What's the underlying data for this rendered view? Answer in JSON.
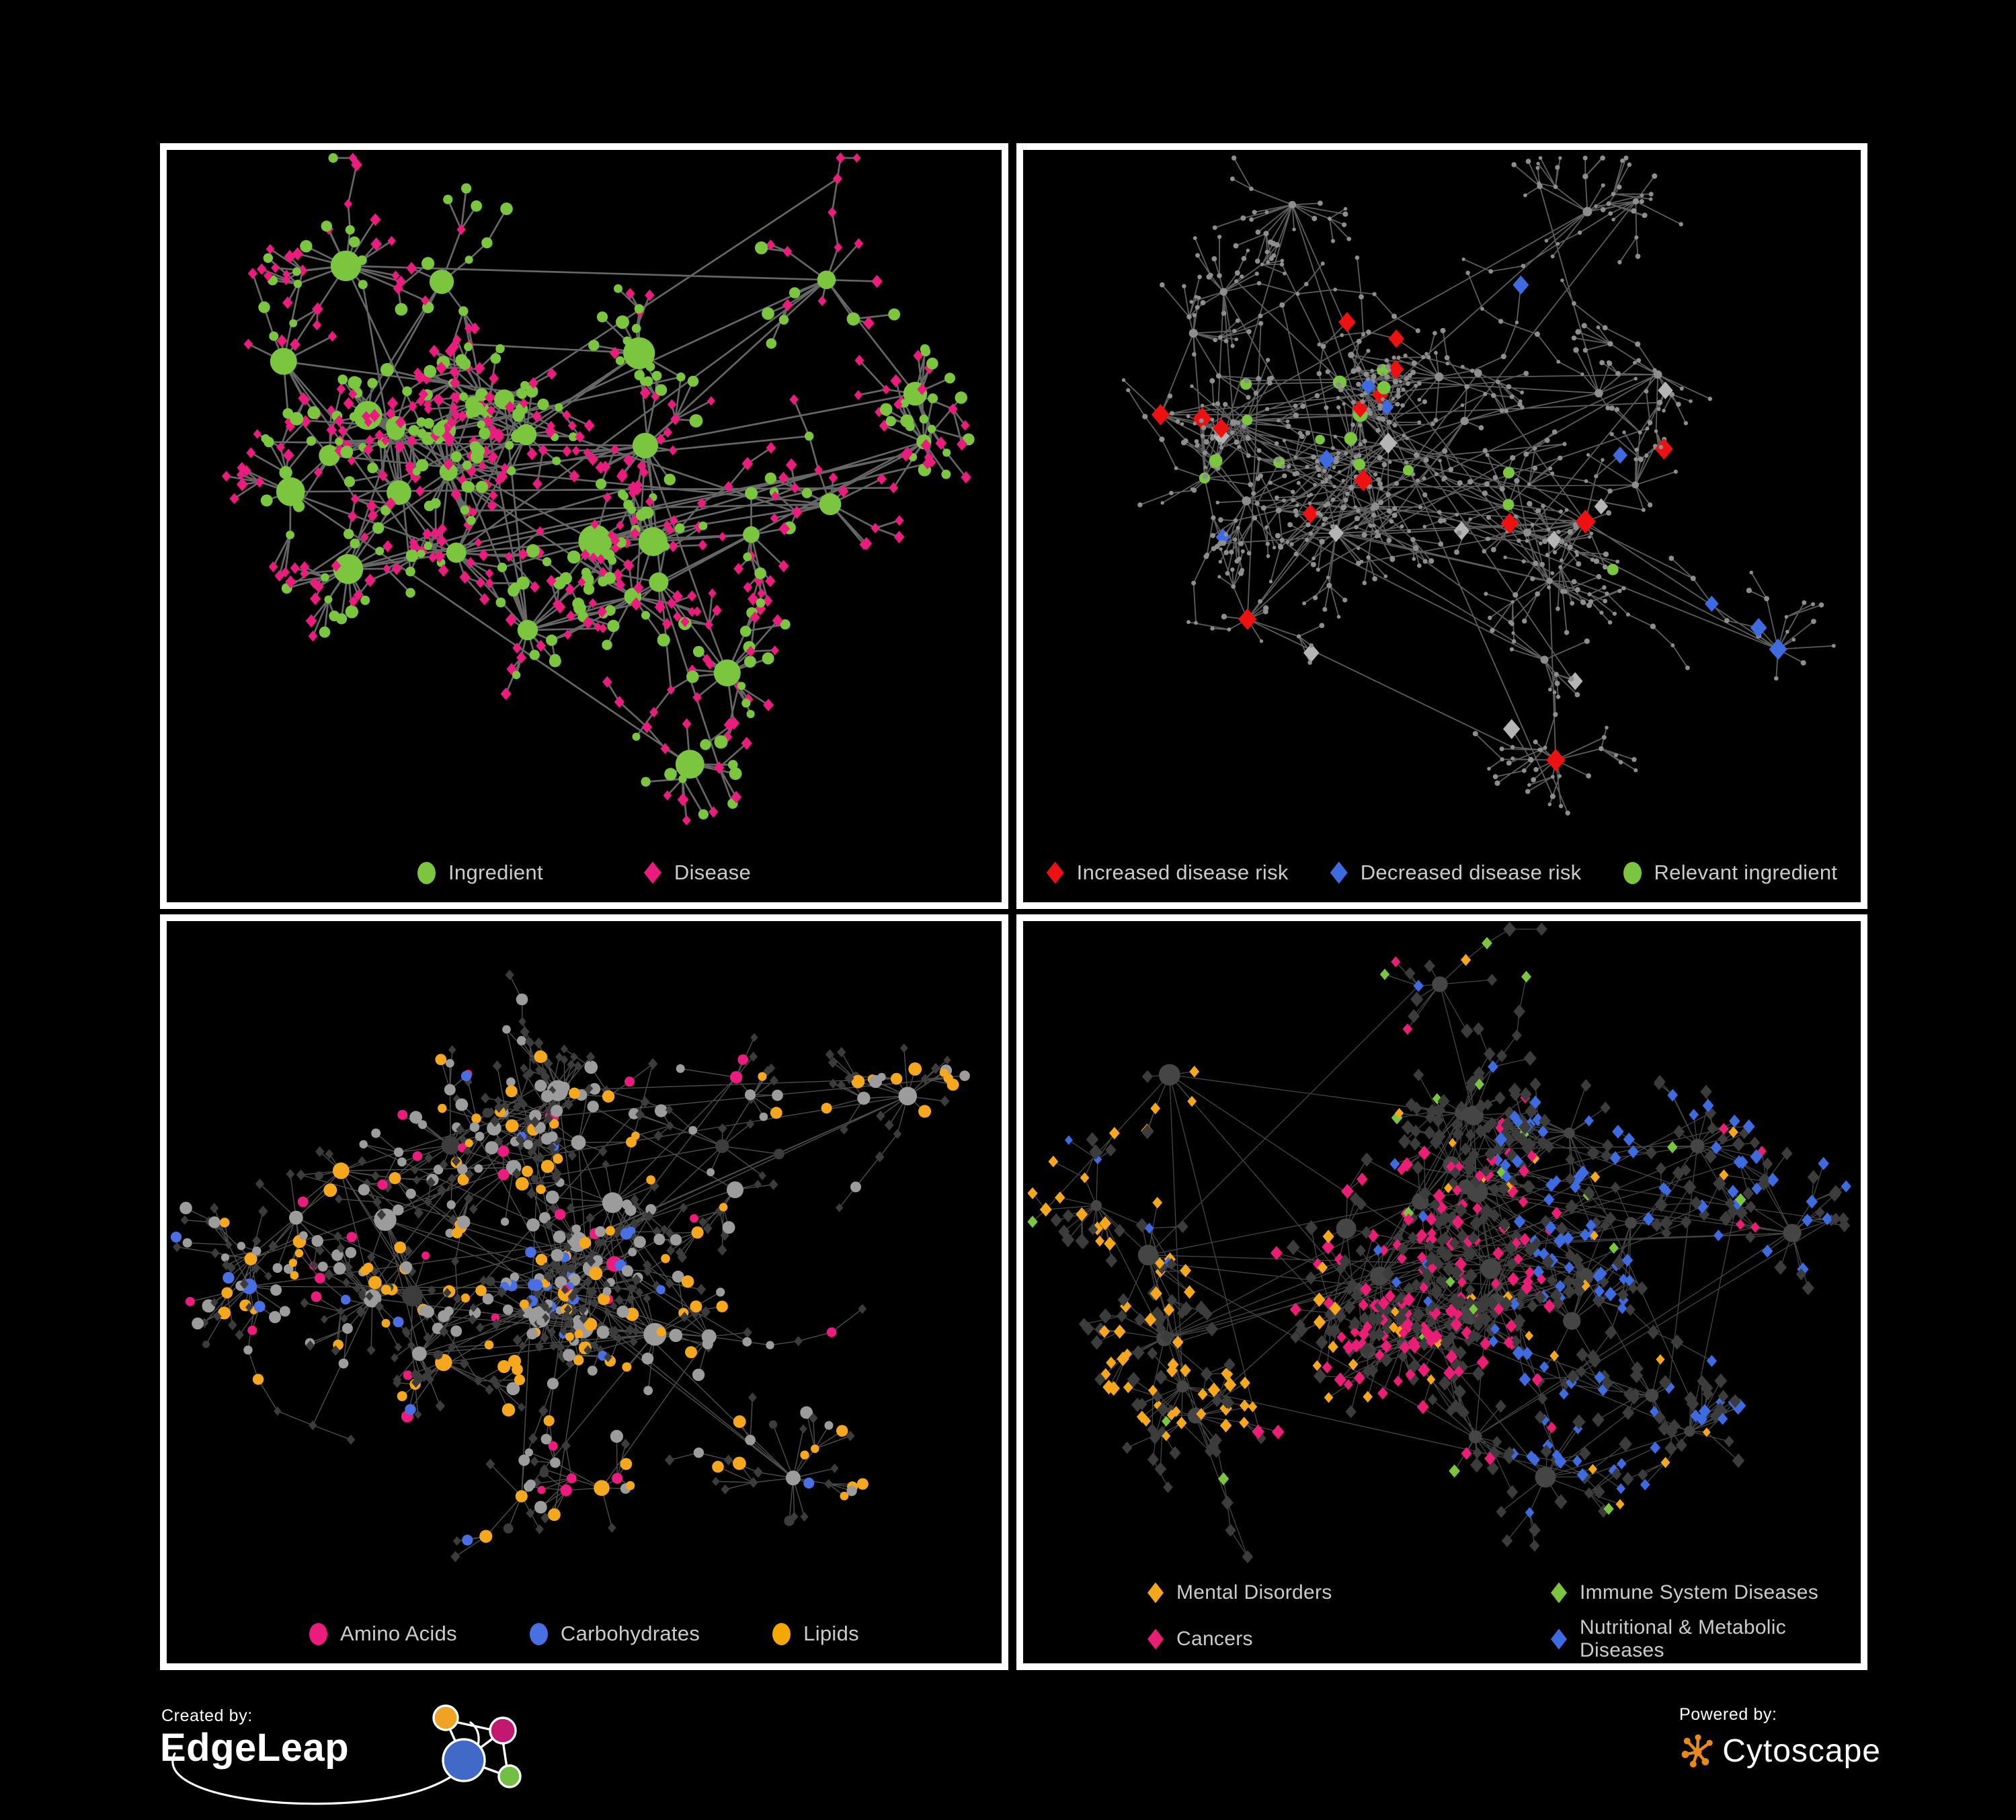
{
  "figure": {
    "background": "#000000",
    "panel_border_color": "#ffffff",
    "legend_text_color": "#cbcbcb"
  },
  "panels": [
    {
      "name": "ingredient-disease-network",
      "legend": [
        {
          "label": "Ingredient",
          "color": "#7cc63f",
          "shape": "circle"
        },
        {
          "label": "Disease",
          "color": "#ea1c7d",
          "shape": "diamond"
        }
      ],
      "network": {
        "seed": 11,
        "hubs": 30,
        "min_kids": 4,
        "var_kids": 12,
        "sub_prob": 0.32,
        "chain_prob": 0.5,
        "extra_edges": 42,
        "view": [
          1242,
          1031
        ],
        "edge": {
          "color": "#6f6f6f",
          "width": 2.7,
          "opacity": 0.92
        },
        "hub_styles": [
          {
            "shape": "circle",
            "color": "#7cc63f",
            "w": 1,
            "r": [
              11,
              14
            ]
          }
        ],
        "leaf_styles": [
          {
            "shape": "diamond",
            "color": "#ea1c7d",
            "w": 0.6,
            "r": [
              7,
              3
            ]
          },
          {
            "shape": "circle",
            "color": "#7cc63f",
            "w": 0.4,
            "r": [
              6,
              4
            ]
          }
        ]
      }
    },
    {
      "name": "disease-risk-network",
      "legend": [
        {
          "label": "Increased disease risk",
          "color": "#ee1111",
          "shape": "diamond"
        },
        {
          "label": "Decreased disease risk",
          "color": "#3e6be0",
          "shape": "diamond"
        },
        {
          "label": "Relevant ingredient",
          "color": "#7cc63f",
          "shape": "circle"
        }
      ],
      "network": {
        "seed": 23,
        "hubs": 34,
        "min_kids": 3,
        "var_kids": 11,
        "sub_prob": 0.45,
        "chain_prob": 0.8,
        "extra_edges": 46,
        "view": [
          1246,
          1031
        ],
        "edge": {
          "color": "#676767",
          "width": 1.8,
          "opacity": 0.9
        },
        "hub_styles": [
          {
            "shape": "circle",
            "color": "#8e8e8e",
            "w": 0.52,
            "r": [
              4,
              3
            ]
          },
          {
            "shape": "circle",
            "color": "#7cc63f",
            "w": 0.17,
            "r": [
              8,
              4
            ],
            "region": [
              0.05,
              0.8,
              0.1,
              0.9
            ]
          },
          {
            "shape": "diamond",
            "color": "#ee1111",
            "w": 0.21,
            "r": [
              15,
              5
            ],
            "region": [
              0.05,
              0.85,
              0.15,
              0.95
            ]
          },
          {
            "shape": "diamond",
            "color": "#b5b5b5",
            "w": 0.06,
            "r": [
              13,
              3
            ],
            "region": [
              0.1,
              0.8,
              0.2,
              0.95
            ]
          },
          {
            "shape": "diamond",
            "color": "#3e6be0",
            "w": 0.04,
            "r": [
              13,
              3
            ],
            "region": [
              0.1,
              1,
              0.1,
              0.8
            ]
          }
        ],
        "leaf_styles": [
          {
            "shape": "circle",
            "color": "#8e8e8e",
            "w": 0.945,
            "r": [
              2.6,
              1.6
            ]
          },
          {
            "shape": "diamond",
            "color": "#ee1111",
            "w": 0.02,
            "r": [
              13,
              4
            ],
            "region": [
              0.1,
              0.8,
              0.2,
              0.9
            ]
          },
          {
            "shape": "circle",
            "color": "#7cc63f",
            "w": 0.02,
            "r": [
              7,
              3
            ],
            "region": [
              0.05,
              0.8,
              0.1,
              0.9
            ]
          },
          {
            "shape": "diamond",
            "color": "#3e6be0",
            "w": 0.008,
            "r": [
              12,
              3
            ],
            "region": [
              0.15,
              1,
              0.1,
              0.8
            ]
          },
          {
            "shape": "diamond",
            "color": "#b5b5b5",
            "w": 0.007,
            "r": [
              12,
              3
            ],
            "region": [
              0.1,
              0.8,
              0.2,
              0.95
            ]
          }
        ]
      }
    },
    {
      "name": "nutrient-classes-network",
      "legend": [
        {
          "label": "Amino Acids",
          "color": "#ea1c7d",
          "shape": "circle"
        },
        {
          "label": "Carbohydrates",
          "color": "#4a6fe3",
          "shape": "circle"
        },
        {
          "label": "Lipids",
          "color": "#f5a800",
          "shape": "circle"
        }
      ],
      "network": {
        "seed": 37,
        "hubs": 32,
        "min_kids": 4,
        "var_kids": 12,
        "sub_prob": 0.34,
        "chain_prob": 0.55,
        "extra_edges": 44,
        "view": [
          1242,
          1016
        ],
        "edge": {
          "color": "#9a9a9a",
          "width": 1.4,
          "opacity": 0.5
        },
        "hub_styles": [
          {
            "shape": "circle",
            "color": "#9c9c9c",
            "w": 0.6,
            "r": [
              10,
              8
            ]
          },
          {
            "shape": "circle",
            "color": "#f5a71d",
            "w": 0.22,
            "r": [
              9,
              5
            ]
          },
          {
            "shape": "circle",
            "color": "#ea1c7d",
            "w": 0.06,
            "r": [
              8,
              4
            ]
          },
          {
            "shape": "circle",
            "color": "#4a6fe3",
            "w": 0.06,
            "r": [
              8,
              4
            ]
          },
          {
            "shape": "circle",
            "color": "#3c3c3c",
            "w": 0.06,
            "r": [
              10,
              6
            ]
          }
        ],
        "leaf_styles": [
          {
            "shape": "diamond",
            "color": "#3c3c3c",
            "w": 0.5,
            "r": [
              6.5,
              2
            ]
          },
          {
            "shape": "circle",
            "color": "#9c9c9c",
            "w": 0.23,
            "r": [
              6,
              4
            ]
          },
          {
            "shape": "circle",
            "color": "#f5a71d",
            "w": 0.15,
            "r": [
              6,
              4
            ]
          },
          {
            "shape": "circle",
            "color": "#4a6fe3",
            "w": 0.05,
            "r": [
              6,
              3
            ]
          },
          {
            "shape": "circle",
            "color": "#ea1c7d",
            "w": 0.05,
            "r": [
              6,
              3
            ]
          },
          {
            "shape": "circle",
            "color": "#3c3c3c",
            "w": 0.02,
            "r": [
              5,
              3
            ]
          }
        ]
      }
    },
    {
      "name": "disease-categories-network",
      "legend": [
        {
          "label": "Mental Disorders",
          "color": "#f5a71d",
          "shape": "diamond"
        },
        {
          "label": "Cancers",
          "color": "#e91e74",
          "shape": "diamond"
        },
        {
          "label": "Immune System Diseases",
          "color": "#7cc63f",
          "shape": "diamond"
        },
        {
          "label": "Nutritional & Metabolic Diseases",
          "color": "#3e6be0",
          "shape": "diamond"
        }
      ],
      "legend_layout": "two-columns",
      "network": {
        "seed": 53,
        "hubs": 34,
        "min_kids": 4,
        "var_kids": 13,
        "sub_prob": 0.36,
        "chain_prob": 0.55,
        "extra_edges": 50,
        "view": [
          1246,
          980
        ],
        "edge": {
          "color": "#9a9a9a",
          "width": 1.3,
          "opacity": 0.45
        },
        "hub_styles": [
          {
            "shape": "circle",
            "color": "#454545",
            "w": 1,
            "r": [
              8,
              8
            ]
          }
        ],
        "leaf_styles": [
          {
            "shape": "diamond",
            "color": "#3c3c3c",
            "w": 0.55,
            "r": [
              8.5,
              3
            ]
          },
          {
            "shape": "diamond",
            "color": "#f5a71d",
            "w": 0.4,
            "r": [
              8,
              3
            ],
            "region": [
              0,
              0.38,
              0.1,
              0.78
            ]
          },
          {
            "shape": "diamond",
            "color": "#e91e74",
            "w": 0.32,
            "r": [
              8,
              3
            ],
            "region": [
              0.28,
              0.64,
              0.35,
              0.82
            ]
          },
          {
            "shape": "diamond",
            "color": "#3e6be0",
            "w": 0.32,
            "r": [
              8,
              3
            ],
            "region": [
              0.56,
              1,
              0.05,
              0.95
            ]
          },
          {
            "shape": "diamond",
            "color": "#7cc63f",
            "w": 0.025,
            "r": [
              8,
              2
            ]
          },
          {
            "shape": "diamond",
            "color": "#f5a71d",
            "w": 0.035,
            "r": [
              7,
              2
            ]
          },
          {
            "shape": "diamond",
            "color": "#e91e74",
            "w": 0.03,
            "r": [
              7,
              2
            ],
            "region": [
              0.3,
              1,
              0,
              0.5
            ]
          },
          {
            "shape": "diamond",
            "color": "#3e6be0",
            "w": 0.04,
            "r": [
              7,
              2
            ],
            "region": [
              0,
              0.5,
              0,
              0.6
            ]
          }
        ]
      }
    }
  ],
  "footer": {
    "created_by": {
      "label": "Created by:",
      "name": "EdgeLeap"
    },
    "powered_by": {
      "label": "Powered by:",
      "name": "Cytoscape"
    },
    "edgeleap_icon_colors": {
      "blue": "#4169c8",
      "orange": "#f0a224",
      "pink": "#c2186f",
      "green": "#72bf44"
    },
    "cytoscape_icon_color": "#e8891b"
  }
}
